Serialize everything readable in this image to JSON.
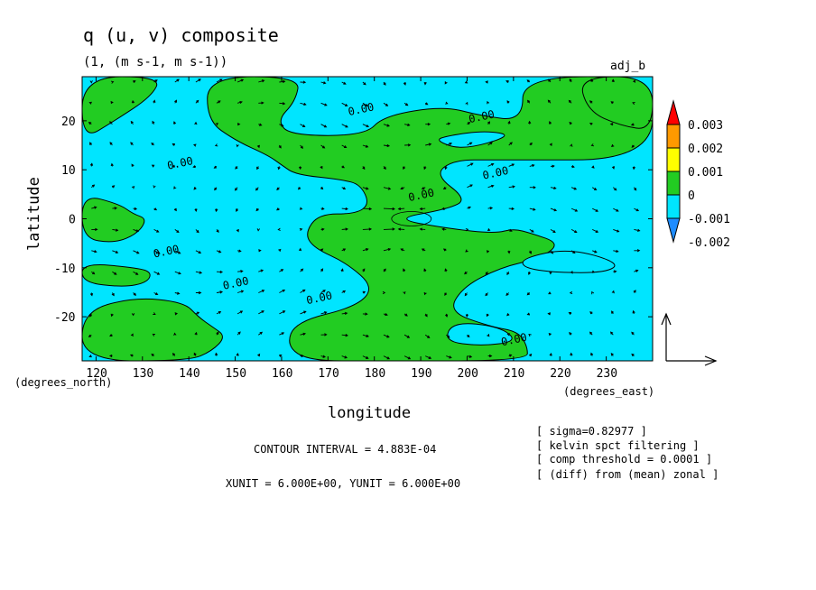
{
  "title": "q (u, v) composite",
  "subtitle": "(1, (m s-1, m s-1))",
  "run_label": "adj_b",
  "chart_data": {
    "type": "heatmap",
    "title": "q (u, v) composite",
    "subtitle": "(1, (m s-1, m s-1))",
    "xlabel": "longitude",
    "ylabel": "latitude",
    "x_unit_label": "(degrees_east)",
    "y_unit_label": "(degrees_north)",
    "xlim": [
      117,
      240
    ],
    "ylim": [
      -29,
      29
    ],
    "x_ticks": [
      120,
      130,
      140,
      150,
      160,
      170,
      180,
      190,
      200,
      210,
      220,
      230
    ],
    "y_ticks": [
      -20,
      -10,
      0,
      10,
      20
    ],
    "colorbar": {
      "levels": [
        -0.002,
        -0.001,
        0,
        0.001,
        0.002,
        0.003
      ],
      "labels": [
        "-0.002",
        "-0.001",
        "0",
        "0.001",
        "0.002",
        "0.003"
      ],
      "colors": [
        "#1e8cff",
        "#00e5ff",
        "#22cc22",
        "#ffff00",
        "#ff9900",
        "#ff0000"
      ]
    },
    "colors": {
      "positive": "#22cc22",
      "negative": "#00e5ff"
    },
    "contour_labels": [
      {
        "text": "0.00",
        "lon": 177,
        "lat": 22.5
      },
      {
        "text": "0.00",
        "lon": 203,
        "lat": 21
      },
      {
        "text": "0.00",
        "lon": 138,
        "lat": 11.5
      },
      {
        "text": "0.00",
        "lon": 206,
        "lat": 9.5
      },
      {
        "text": "0.00",
        "lon": 190,
        "lat": 5
      },
      {
        "text": "0.00",
        "lon": 135,
        "lat": -6.5
      },
      {
        "text": "0.00",
        "lon": 150,
        "lat": -13
      },
      {
        "text": "0.00",
        "lon": 168,
        "lat": -16
      },
      {
        "text": "0.00",
        "lon": 210,
        "lat": -24.5
      }
    ],
    "positive_regions": [
      [
        [
          117,
          29
        ],
        [
          134,
          29
        ],
        [
          132,
          25
        ],
        [
          124,
          20
        ],
        [
          117,
          16
        ]
      ],
      [
        [
          144,
          29
        ],
        [
          164,
          29
        ],
        [
          163,
          24
        ],
        [
          159,
          20
        ],
        [
          162,
          17
        ],
        [
          178,
          17
        ],
        [
          182,
          21
        ],
        [
          195,
          23
        ],
        [
          203,
          21
        ],
        [
          212,
          20
        ],
        [
          212,
          29
        ],
        [
          240,
          29
        ],
        [
          240,
          12
        ],
        [
          206,
          12
        ],
        [
          197,
          12
        ],
        [
          193,
          9
        ],
        [
          200,
          4
        ],
        [
          196,
          2
        ],
        [
          184,
          0
        ],
        [
          196,
          -2
        ],
        [
          206,
          -3
        ],
        [
          210,
          -2
        ],
        [
          214,
          -3
        ],
        [
          220,
          -5
        ],
        [
          216,
          -8
        ],
        [
          207,
          -10
        ],
        [
          199,
          -14
        ],
        [
          196,
          -19
        ],
        [
          205,
          -22
        ],
        [
          211,
          -23
        ],
        [
          213,
          -26
        ],
        [
          213,
          -29
        ],
        [
          180,
          -29
        ],
        [
          166,
          -29
        ],
        [
          161,
          -26
        ],
        [
          163,
          -21
        ],
        [
          176,
          -18
        ],
        [
          180,
          -14
        ],
        [
          174,
          -9
        ],
        [
          167,
          -6
        ],
        [
          165,
          -3
        ],
        [
          168,
          1
        ],
        [
          176,
          1
        ],
        [
          179,
          3
        ],
        [
          177,
          7
        ],
        [
          173,
          8
        ],
        [
          163,
          9
        ],
        [
          160,
          11
        ],
        [
          157,
          13
        ],
        [
          150,
          16
        ],
        [
          144,
          20
        ]
      ],
      [
        [
          117,
          5
        ],
        [
          125,
          3
        ],
        [
          128,
          1
        ],
        [
          131,
          0
        ],
        [
          129,
          -3
        ],
        [
          124,
          -5
        ],
        [
          117,
          -4
        ]
      ],
      [
        [
          117,
          -29
        ],
        [
          117,
          -19
        ],
        [
          128,
          -16
        ],
        [
          139,
          -17
        ],
        [
          142,
          -20
        ],
        [
          145,
          -22
        ],
        [
          148,
          -24
        ],
        [
          145,
          -27
        ],
        [
          140,
          -29
        ]
      ],
      [
        [
          224,
          29
        ],
        [
          240,
          29
        ],
        [
          240,
          18
        ],
        [
          233,
          19
        ],
        [
          226,
          22
        ]
      ],
      [
        [
          117,
          -9
        ],
        [
          129,
          -10
        ],
        [
          132,
          -11
        ],
        [
          131,
          -13
        ],
        [
          126,
          -14
        ],
        [
          117,
          -13
        ]
      ]
    ],
    "negative_holes": [
      [
        [
          197,
          -21
        ],
        [
          207,
          -22
        ],
        [
          211,
          -25
        ],
        [
          203,
          -26
        ],
        [
          195,
          -25
        ]
      ],
      [
        [
          199,
          14
        ],
        [
          210,
          17
        ],
        [
          204,
          18
        ],
        [
          196,
          17
        ],
        [
          193,
          16
        ]
      ],
      [
        [
          212,
          -8
        ],
        [
          222,
          -6
        ],
        [
          233,
          -9
        ],
        [
          230,
          -11
        ],
        [
          219,
          -11
        ],
        [
          212,
          -10
        ]
      ]
    ],
    "vector_unit": {
      "xunit": "6.000E+00",
      "yunit": "6.000E+00"
    }
  },
  "footer": {
    "contour_interval": "CONTOUR INTERVAL = 4.883E-04",
    "units": "XUNIT = 6.000E+00, YUNIT = 6.000E+00"
  },
  "notes": [
    "[ sigma=0.82977 ]",
    "[ kelvin spct filtering ]",
    "[ comp threshold = 0.0001 ]",
    "[ (diff) from (mean) zonal ]"
  ]
}
